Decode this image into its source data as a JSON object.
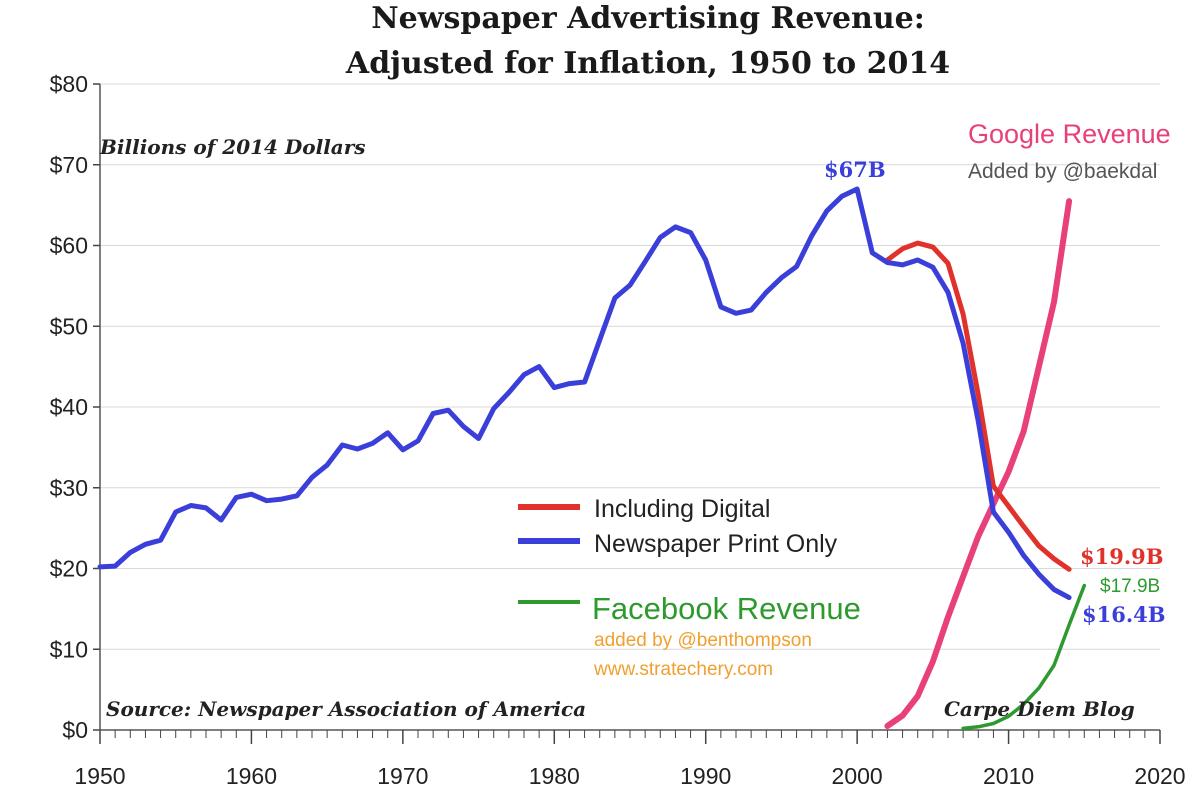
{
  "colors": {
    "digital": "#e0322a",
    "print": "#3b3fd9",
    "google": "#e8407a",
    "facebook": "#2e9a2e",
    "grid": "#d9d9d9",
    "orange": "#f0a030"
  },
  "chart_data": {
    "type": "line",
    "title_line1": "Newspaper Advertising Revenue:",
    "title_line2": "Adjusted for Inflation, 1950 to 2014",
    "ylabel": "Billions of 2014 Dollars",
    "source": "Source: Newspaper Association of America",
    "credit": "Carpe Diem Blog",
    "xlim": [
      1950,
      2020
    ],
    "ylim": [
      0,
      80
    ],
    "xticks": [
      1950,
      1960,
      1970,
      1980,
      1990,
      2000,
      2010,
      2020
    ],
    "xtick_labels": [
      "1950",
      "1960",
      "1970",
      "1980",
      "1990",
      "2000",
      "2010",
      "2020"
    ],
    "yticks": [
      0,
      10,
      20,
      30,
      40,
      50,
      60,
      70,
      80
    ],
    "ytick_labels": [
      "$0",
      "$10",
      "$20",
      "$30",
      "$40",
      "$50",
      "$60",
      "$70",
      "$80"
    ],
    "series": [
      {
        "key": "print",
        "name": "Newspaper Print Only",
        "x": [
          1950,
          1951,
          1952,
          1953,
          1954,
          1955,
          1956,
          1957,
          1958,
          1959,
          1960,
          1961,
          1962,
          1963,
          1964,
          1965,
          1966,
          1967,
          1968,
          1969,
          1970,
          1971,
          1972,
          1973,
          1974,
          1975,
          1976,
          1977,
          1978,
          1979,
          1980,
          1981,
          1982,
          1983,
          1984,
          1985,
          1986,
          1987,
          1988,
          1989,
          1990,
          1991,
          1992,
          1993,
          1994,
          1995,
          1996,
          1997,
          1998,
          1999,
          2000,
          2001,
          2002,
          2003,
          2004,
          2005,
          2006,
          2007,
          2008,
          2009,
          2010,
          2011,
          2012,
          2013,
          2014
        ],
        "values": [
          20.2,
          20.3,
          22,
          23,
          23.5,
          27,
          27.8,
          27.5,
          26,
          28.8,
          29.2,
          28.4,
          28.6,
          29,
          31.3,
          32.8,
          35.3,
          34.8,
          35.5,
          36.8,
          34.7,
          35.8,
          39.2,
          39.6,
          37.6,
          36.1,
          39.8,
          41.8,
          44,
          45,
          42.4,
          42.9,
          43.1,
          48.3,
          53.5,
          55.1,
          58,
          61,
          62.3,
          61.6,
          58.2,
          52.4,
          51.6,
          52,
          54.2,
          56,
          57.4,
          61.2,
          64.3,
          66.1,
          67,
          59.1,
          57.9,
          57.6,
          58.2,
          57.3,
          54.2,
          47.9,
          38.2,
          27,
          24.5,
          21.6,
          19.3,
          17.4,
          16.4
        ]
      },
      {
        "key": "digital",
        "name": "Including Digital",
        "x": [
          2002,
          2003,
          2004,
          2005,
          2006,
          2007,
          2008,
          2009,
          2010,
          2011,
          2012,
          2013,
          2014
        ],
        "values": [
          58.2,
          59.6,
          60.3,
          59.8,
          57.8,
          51.5,
          41.5,
          30.2,
          27.7,
          25.2,
          22.8,
          21.2,
          19.9
        ]
      },
      {
        "key": "google",
        "name": "Google Revenue",
        "x": [
          2002,
          2003,
          2004,
          2005,
          2006,
          2007,
          2008,
          2009,
          2010,
          2011,
          2012,
          2013,
          2014
        ],
        "values": [
          0.5,
          1.8,
          4.2,
          8.5,
          14,
          19,
          24,
          28,
          32,
          37,
          45,
          53,
          65.5
        ]
      },
      {
        "key": "facebook",
        "name": "Facebook Revenue",
        "x": [
          2007,
          2008,
          2009,
          2010,
          2011,
          2012,
          2013,
          2014,
          2015
        ],
        "values": [
          0.2,
          0.4,
          0.8,
          1.7,
          3.2,
          5.2,
          8,
          13,
          17.9
        ]
      }
    ],
    "annotations": {
      "peak": "$67B",
      "digital_end": "$19.9B",
      "facebook_end": "$17.9B",
      "print_end": "$16.4B"
    },
    "legend": {
      "digital": "Including Digital",
      "print": "Newspaper Print Only",
      "facebook": "Facebook Revenue",
      "facebook_credit1": "added by @benthompson",
      "facebook_credit2": "www.stratechery.com",
      "google": "Google Revenue",
      "google_credit": "Added by @baekdal"
    }
  }
}
